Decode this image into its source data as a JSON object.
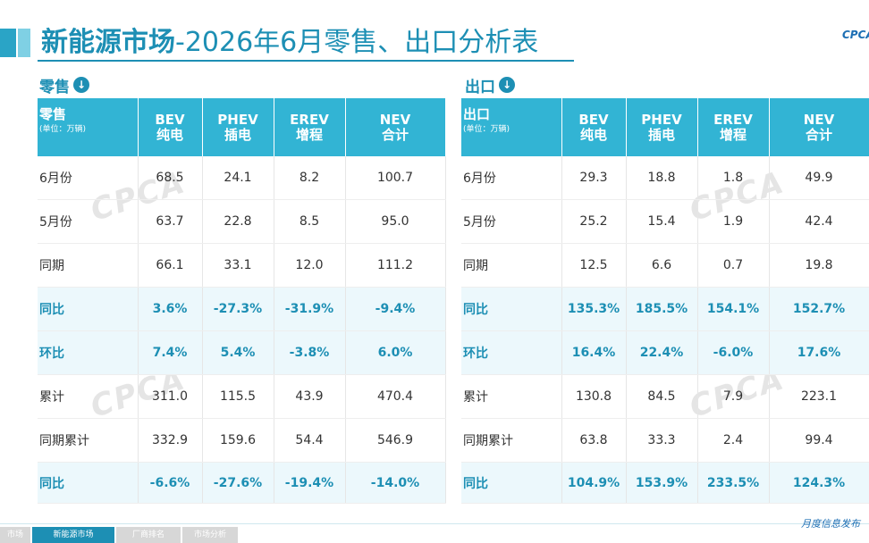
{
  "title": {
    "main": "新能源市场",
    "rest": "-2026年6月零售、出口分析表"
  },
  "logo": "CPCA",
  "retail": {
    "section_label": "零售",
    "header": {
      "label": "零售",
      "unit": "(单位：万辆)"
    },
    "columns": [
      {
        "en": "BEV",
        "cn": "纯电"
      },
      {
        "en": "PHEV",
        "cn": "插电"
      },
      {
        "en": "EREV",
        "cn": "增程"
      },
      {
        "en": "NEV",
        "cn": "合计"
      }
    ],
    "rows": [
      {
        "label": "6月份",
        "values": [
          "68.5",
          "24.1",
          "8.2",
          "100.7"
        ],
        "highlight": false
      },
      {
        "label": "5月份",
        "values": [
          "63.7",
          "22.8",
          "8.5",
          "95.0"
        ],
        "highlight": false
      },
      {
        "label": "同期",
        "values": [
          "66.1",
          "33.1",
          "12.0",
          "111.2"
        ],
        "highlight": false
      },
      {
        "label": "同比",
        "values": [
          "3.6%",
          "-27.3%",
          "-31.9%",
          "-9.4%"
        ],
        "highlight": true
      },
      {
        "label": "环比",
        "values": [
          "7.4%",
          "5.4%",
          "-3.8%",
          "6.0%"
        ],
        "highlight": true
      },
      {
        "label": "累计",
        "values": [
          "311.0",
          "115.5",
          "43.9",
          "470.4"
        ],
        "highlight": false
      },
      {
        "label": "同期累计",
        "values": [
          "332.9",
          "159.6",
          "54.4",
          "546.9"
        ],
        "highlight": false
      },
      {
        "label": "同比",
        "values": [
          "-6.6%",
          "-27.6%",
          "-19.4%",
          "-14.0%"
        ],
        "highlight": true
      }
    ]
  },
  "export": {
    "section_label": "出口",
    "header": {
      "label": "出口",
      "unit": "(单位：万辆)"
    },
    "columns": [
      {
        "en": "BEV",
        "cn": "纯电"
      },
      {
        "en": "PHEV",
        "cn": "插电"
      },
      {
        "en": "EREV",
        "cn": "增程"
      },
      {
        "en": "NEV",
        "cn": "合计"
      }
    ],
    "rows": [
      {
        "label": "6月份",
        "values": [
          "29.3",
          "18.8",
          "1.8",
          "49.9"
        ],
        "highlight": false
      },
      {
        "label": "5月份",
        "values": [
          "25.2",
          "15.4",
          "1.9",
          "42.4"
        ],
        "highlight": false
      },
      {
        "label": "同期",
        "values": [
          "12.5",
          "6.6",
          "0.7",
          "19.8"
        ],
        "highlight": false
      },
      {
        "label": "同比",
        "values": [
          "135.3%",
          "185.5%",
          "154.1%",
          "152.7%"
        ],
        "highlight": true
      },
      {
        "label": "环比",
        "values": [
          "16.4%",
          "22.4%",
          "-6.0%",
          "17.6%"
        ],
        "highlight": true
      },
      {
        "label": "累计",
        "values": [
          "130.8",
          "84.5",
          "7.9",
          "223.1"
        ],
        "highlight": false
      },
      {
        "label": "同期累计",
        "values": [
          "63.8",
          "33.3",
          "2.4",
          "99.4"
        ],
        "highlight": false
      },
      {
        "label": "同比",
        "values": [
          "104.9%",
          "153.9%",
          "233.5%",
          "124.3%"
        ],
        "highlight": true
      }
    ]
  },
  "watermark": "CPCA",
  "bottom_nav": [
    "市场",
    "新能源市场",
    "厂商排名",
    "市场分析"
  ],
  "footer": "月度信息发布",
  "colors": {
    "accent": "#1d8fb4",
    "header_bg": "#32b4d4",
    "highlight_bg": "#ecf8fc"
  },
  "icons": {
    "section": "chevron-down-circle-icon"
  }
}
